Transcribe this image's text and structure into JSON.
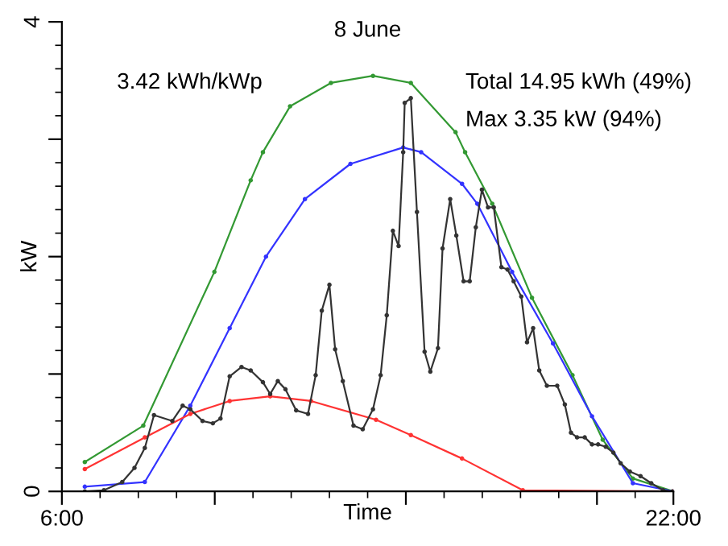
{
  "chart_data": {
    "type": "line",
    "title": "8 June",
    "xlabel": "Time",
    "ylabel": "kW",
    "annotations": [
      "3.42 kWh/kWp",
      "Total 14.95 kWh (49%)",
      "Max 3.35 kW (94%)"
    ],
    "xlim": [
      6,
      22
    ],
    "ylim": [
      0,
      4
    ],
    "xticks": [
      {
        "value": 6,
        "label": "6:00"
      },
      {
        "value": 10,
        "label": null
      },
      {
        "value": 15,
        "label": null
      },
      {
        "value": 20,
        "label": null
      },
      {
        "value": 22,
        "label": "22:00"
      }
    ],
    "yticks": [
      0,
      {
        "value": 1,
        "label": null
      },
      {
        "value": 2,
        "label": null
      },
      {
        "value": 3,
        "label": null
      },
      4
    ],
    "grid": false,
    "legend": false,
    "marker": "circle",
    "line_style": "solid",
    "series": [
      {
        "color": "#339933",
        "x": [
          6.6,
          8.13,
          9.99,
          10.94,
          11.26,
          11.97,
          13.04,
          14.14,
          15.13,
          16.3,
          16.55,
          17.26,
          18.3,
          19.36,
          20.15,
          20.94,
          22
        ],
        "values": [
          0.25,
          0.56,
          1.87,
          2.65,
          2.89,
          3.28,
          3.48,
          3.54,
          3.48,
          3.06,
          2.89,
          2.45,
          1.65,
          0.99,
          0.44,
          0.11,
          0
        ]
      },
      {
        "color": "#3333ff",
        "x": [
          6.6,
          8.17,
          9.36,
          10.39,
          11.34,
          12.36,
          13.55,
          14.93,
          15.4,
          16.47,
          16.87,
          17.78,
          18.85,
          19.87,
          20.94,
          22
        ],
        "values": [
          0.04,
          0.08,
          0.73,
          1.39,
          2.0,
          2.49,
          2.79,
          2.93,
          2.89,
          2.62,
          2.45,
          1.87,
          1.26,
          0.64,
          0.07,
          0
        ]
      },
      {
        "color": "#ff3333",
        "x": [
          6.6,
          8.17,
          9.36,
          10.39,
          11.45,
          12.52,
          14.22,
          15.13,
          16.47,
          18.06,
          22
        ],
        "values": [
          0.19,
          0.46,
          0.66,
          0.77,
          0.81,
          0.77,
          0.61,
          0.48,
          0.28,
          0.01,
          0
        ]
      },
      {
        "color": "#333333",
        "x": [
          6.6,
          7.1,
          7.58,
          7.9,
          8.17,
          8.41,
          8.89,
          9.16,
          9.36,
          9.68,
          9.95,
          10.15,
          10.39,
          10.7,
          10.94,
          11.26,
          11.45,
          11.65,
          11.85,
          12.13,
          12.44,
          12.64,
          12.8,
          13.0,
          13.15,
          13.35,
          13.63,
          13.87,
          14.14,
          14.34,
          14.5,
          14.66,
          14.81,
          14.93,
          14.97,
          15.13,
          15.29,
          15.49,
          15.64,
          15.84,
          15.96,
          16.16,
          16.32,
          16.51,
          16.67,
          16.83,
          16.99,
          17.15,
          17.3,
          17.5,
          17.66,
          17.82,
          18.02,
          18.17,
          18.33,
          18.49,
          18.69,
          18.96,
          19.16,
          19.32,
          19.48,
          19.68,
          19.87,
          20.03,
          20.23,
          20.43,
          20.62,
          20.86,
          21.14,
          21.42,
          21.73,
          21.97
        ],
        "values": [
          0,
          0.01,
          0.08,
          0.2,
          0.37,
          0.65,
          0.6,
          0.73,
          0.7,
          0.6,
          0.58,
          0.62,
          0.98,
          1.06,
          1.03,
          0.93,
          0.83,
          0.94,
          0.87,
          0.69,
          0.66,
          0.99,
          1.54,
          1.76,
          1.21,
          0.94,
          0.56,
          0.53,
          0.7,
          0.99,
          1.5,
          2.22,
          2.09,
          2.89,
          3.31,
          3.35,
          2.38,
          1.19,
          1.02,
          1.22,
          2.07,
          2.49,
          2.18,
          1.79,
          1.79,
          2.25,
          2.57,
          2.42,
          2.42,
          1.91,
          1.89,
          1.79,
          1.66,
          1.27,
          1.39,
          1.03,
          0.9,
          0.9,
          0.74,
          0.5,
          0.46,
          0.46,
          0.4,
          0.4,
          0.38,
          0.33,
          0.24,
          0.17,
          0.13,
          0.07,
          0.01,
          0
        ]
      }
    ]
  }
}
